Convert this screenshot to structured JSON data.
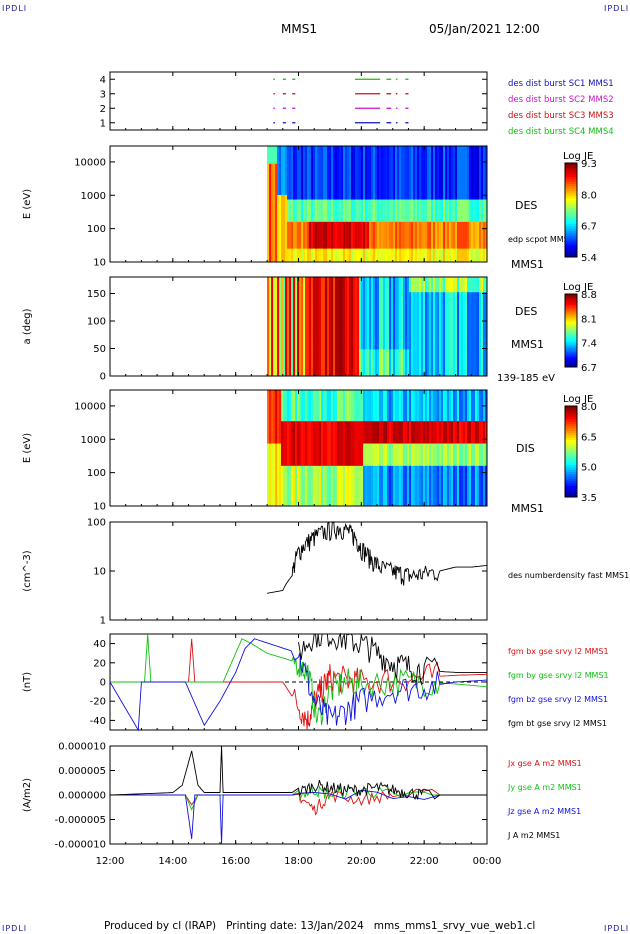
{
  "corners": {
    "tl": "IPDLI",
    "tr": "IPDLI",
    "bl": "IPDLI",
    "br": "IPDLI"
  },
  "header": {
    "mission": "MMS1",
    "datetime": "05/Jan/2021 12:00"
  },
  "footer": {
    "produced_by": "Produced by cl (IRAP)",
    "printing_date": "Printing date: 13/Jan/2024",
    "filename": "mms_mms1_srvy_vue_web1.cl"
  },
  "x_axis": {
    "ticks": [
      "12:00",
      "14:00",
      "16:00",
      "18:00",
      "20:00",
      "22:00",
      "00:00"
    ],
    "hours": [
      12,
      14,
      16,
      18,
      20,
      22,
      24
    ]
  },
  "chart_data": [
    {
      "type": "timeline",
      "panel": "burst",
      "ylim": [
        0.5,
        4.5
      ],
      "y_ticks": [
        "1",
        "2",
        "3",
        "4"
      ],
      "series": [
        {
          "name": "des dist burst SC1 MMS1",
          "color": "#1010c0",
          "level": 1,
          "segments": [
            [
              17.2,
              17.25
            ],
            [
              17.5,
              17.6
            ],
            [
              17.8,
              17.9
            ],
            [
              19.8,
              20.6
            ],
            [
              20.8,
              20.95
            ],
            [
              21.1,
              21.15
            ],
            [
              21.4,
              21.5
            ]
          ]
        },
        {
          "name": "des dist burst SC2 MMS2",
          "color": "#d010d0",
          "level": 2,
          "segments": [
            [
              17.2,
              17.25
            ],
            [
              17.5,
              17.6
            ],
            [
              17.8,
              17.9
            ],
            [
              19.8,
              20.6
            ],
            [
              20.8,
              20.95
            ],
            [
              21.1,
              21.15
            ],
            [
              21.4,
              21.5
            ]
          ]
        },
        {
          "name": "des dist burst SC3 MMS3",
          "color": "#d01010",
          "level": 3,
          "segments": [
            [
              17.2,
              17.25
            ],
            [
              17.5,
              17.6
            ],
            [
              17.8,
              17.9
            ],
            [
              19.8,
              20.6
            ],
            [
              20.8,
              20.95
            ],
            [
              21.1,
              21.15
            ],
            [
              21.4,
              21.5
            ]
          ]
        },
        {
          "name": "des dist burst SC4 MMS4",
          "color": "#10c010",
          "level": 4,
          "segments": [
            [
              17.2,
              17.25
            ],
            [
              17.5,
              17.6
            ],
            [
              17.8,
              17.9
            ],
            [
              19.8,
              20.6
            ],
            [
              20.8,
              20.95
            ],
            [
              21.1,
              21.15
            ],
            [
              21.4,
              21.5
            ]
          ]
        }
      ]
    },
    {
      "type": "heatmap",
      "panel": "des_energy",
      "ylabel": "E (eV)",
      "y_ticks": [
        "10",
        "100",
        "1000",
        "10000"
      ],
      "y_log": true,
      "ylim": [
        10,
        30000
      ],
      "label": "DES",
      "sublabel": "MMS1",
      "overlay_label": "edp scpot MMS1",
      "colorbar": {
        "title": "Log JE",
        "ticks": [
          "9.3",
          "8.0",
          "6.7",
          "5.4"
        ],
        "range": [
          5.4,
          9.3
        ]
      },
      "data_start_hour": 17.0
    },
    {
      "type": "heatmap",
      "panel": "des_pitch",
      "ylabel": "a (deg)",
      "y_ticks": [
        "0",
        "50",
        "100",
        "150"
      ],
      "ylim": [
        0,
        180
      ],
      "label": "DES",
      "sublabel": "MMS1",
      "energy_range": "139-185 eV",
      "colorbar": {
        "title": "Log JE",
        "ticks": [
          "8.8",
          "8.1",
          "7.4",
          "6.7"
        ],
        "range": [
          6.7,
          8.8
        ]
      },
      "data_start_hour": 17.0
    },
    {
      "type": "heatmap",
      "panel": "dis_energy",
      "ylabel": "E (eV)",
      "y_ticks": [
        "10",
        "100",
        "1000",
        "10000"
      ],
      "y_log": true,
      "ylim": [
        10,
        30000
      ],
      "label": "DIS",
      "sublabel": "MMS1",
      "colorbar": {
        "title": "Log JE",
        "ticks": [
          "8.0",
          "6.5",
          "5.0",
          "3.5"
        ],
        "range": [
          3.5,
          8.0
        ]
      },
      "data_start_hour": 17.0
    },
    {
      "type": "line",
      "panel": "density",
      "ylabel": "(cm^-3)",
      "y_log": true,
      "ylim": [
        1,
        100
      ],
      "y_ticks": [
        "1",
        "10",
        "100"
      ],
      "series": [
        {
          "name": "des numberdensity fast MMS1",
          "color": "#000000",
          "x": [
            17.0,
            17.5,
            17.8,
            18.0,
            18.3,
            18.6,
            19.0,
            19.3,
            19.6,
            19.8,
            20.0,
            20.3,
            20.6,
            21.0,
            21.3,
            21.6,
            22.0,
            22.5,
            23.0,
            23.5,
            24.0
          ],
          "y": [
            3.5,
            4.0,
            8.0,
            25,
            40,
            55,
            70,
            80,
            65,
            50,
            30,
            18,
            12,
            10,
            9,
            8,
            9,
            10,
            12,
            12,
            13
          ]
        }
      ]
    },
    {
      "type": "line",
      "panel": "bfield",
      "ylabel": "(nT)",
      "ylim": [
        -50,
        50
      ],
      "y_ticks": [
        "-40",
        "-20",
        "0",
        "20",
        "40"
      ],
      "zero_line": true,
      "series": [
        {
          "name": "fgm bx gse srvy l2 MMS1",
          "color": "#e01010",
          "x": [
            12.0,
            14.5,
            14.6,
            14.7,
            17.5,
            18.0,
            18.3,
            18.5,
            18.8,
            19.0,
            19.5,
            20.0,
            21.0,
            22.0,
            23.0,
            24.0
          ],
          "y": [
            0,
            0,
            45,
            0,
            0,
            -25,
            -40,
            -20,
            -5,
            5,
            2,
            0,
            3,
            5,
            7,
            8
          ]
        },
        {
          "name": "fgm by gse srvy l2 MMS1",
          "color": "#10c010",
          "x": [
            12.0,
            13.1,
            13.2,
            13.3,
            15.6,
            16.2,
            16.5,
            17.0,
            17.5,
            18.0,
            18.3,
            18.6,
            19.0,
            19.5,
            20.0,
            21.0,
            22.0,
            23.0,
            24.0
          ],
          "y": [
            0,
            0,
            50,
            0,
            0,
            45,
            40,
            30,
            25,
            20,
            10,
            -40,
            -10,
            0,
            -2,
            0,
            0,
            -2,
            -5
          ]
        },
        {
          "name": "fgm bz gse srvy l2 MMS1",
          "color": "#1010e0",
          "x": [
            12.0,
            12.9,
            13.0,
            14.4,
            15.0,
            15.5,
            16.0,
            16.3,
            16.6,
            18.0,
            18.5,
            19.0,
            19.5,
            20.0,
            21.0,
            22.0,
            23.0,
            24.0
          ],
          "y": [
            0,
            -50,
            0,
            0,
            -45,
            -20,
            10,
            35,
            45,
            30,
            -20,
            -40,
            -30,
            -20,
            -8,
            -5,
            0,
            2
          ]
        },
        {
          "name": "fgm bt gse srvy l2 MMS1",
          "color": "#000000",
          "x": [
            18.0,
            18.5,
            19.0,
            19.5,
            20.0,
            20.5,
            21.0,
            21.5,
            22.0,
            23.0,
            24.0
          ],
          "y": [
            30,
            50,
            50,
            45,
            40,
            30,
            20,
            15,
            12,
            10,
            10
          ]
        }
      ]
    },
    {
      "type": "line",
      "panel": "current",
      "ylabel": "(A/m2)",
      "ylim": [
        -1e-05,
        1e-05
      ],
      "y_ticks": [
        "0.000010",
        "0.000005",
        "0.000000",
        "-0.000005",
        "-0.000010"
      ],
      "series": [
        {
          "name": "Jx gse A m2 MMS1",
          "color": "#e01010",
          "x": [
            12.0,
            14.4,
            14.6,
            14.8,
            15.6,
            18.0,
            18.5,
            19.0,
            20.0,
            21.0,
            24.0
          ],
          "y": [
            0,
            0,
            -2e-06,
            0,
            0,
            0,
            -3e-06,
            0,
            -1e-06,
            0,
            0
          ]
        },
        {
          "name": "Jy gse A m2 MMS1",
          "color": "#10c010",
          "x": [
            12.0,
            14.4,
            14.6,
            14.8,
            15.6,
            18.0,
            18.5,
            19.0,
            20.0,
            21.0,
            24.0
          ],
          "y": [
            0,
            0,
            -3e-06,
            0,
            0,
            0,
            1e-06,
            0,
            1e-06,
            0,
            0
          ]
        },
        {
          "name": "Jz gse A m2 MMS1",
          "color": "#1010e0",
          "x": [
            12.0,
            14.4,
            14.6,
            14.7,
            15.5,
            15.55,
            15.6,
            18.0,
            24.0
          ],
          "y": [
            0,
            0,
            -9e-06,
            0,
            0,
            -1e-05,
            0,
            0,
            0
          ]
        },
        {
          "name": "J A m2 MMS1",
          "color": "#000000",
          "x": [
            12.0,
            14.0,
            14.3,
            14.6,
            14.8,
            15.0,
            15.5,
            15.55,
            15.6,
            18.0,
            18.5,
            19.0,
            19.5,
            20.0,
            20.5,
            21.0,
            21.5,
            22.0,
            24.0
          ],
          "y": [
            0,
            5e-07,
            2e-06,
            9e-06,
            2e-06,
            5e-07,
            5e-07,
            1e-05,
            5e-07,
            5e-07,
            2e-06,
            1.5e-06,
            1e-06,
            1e-06,
            1.5e-06,
            1e-06,
            5e-07,
            0,
            0
          ]
        }
      ]
    }
  ]
}
